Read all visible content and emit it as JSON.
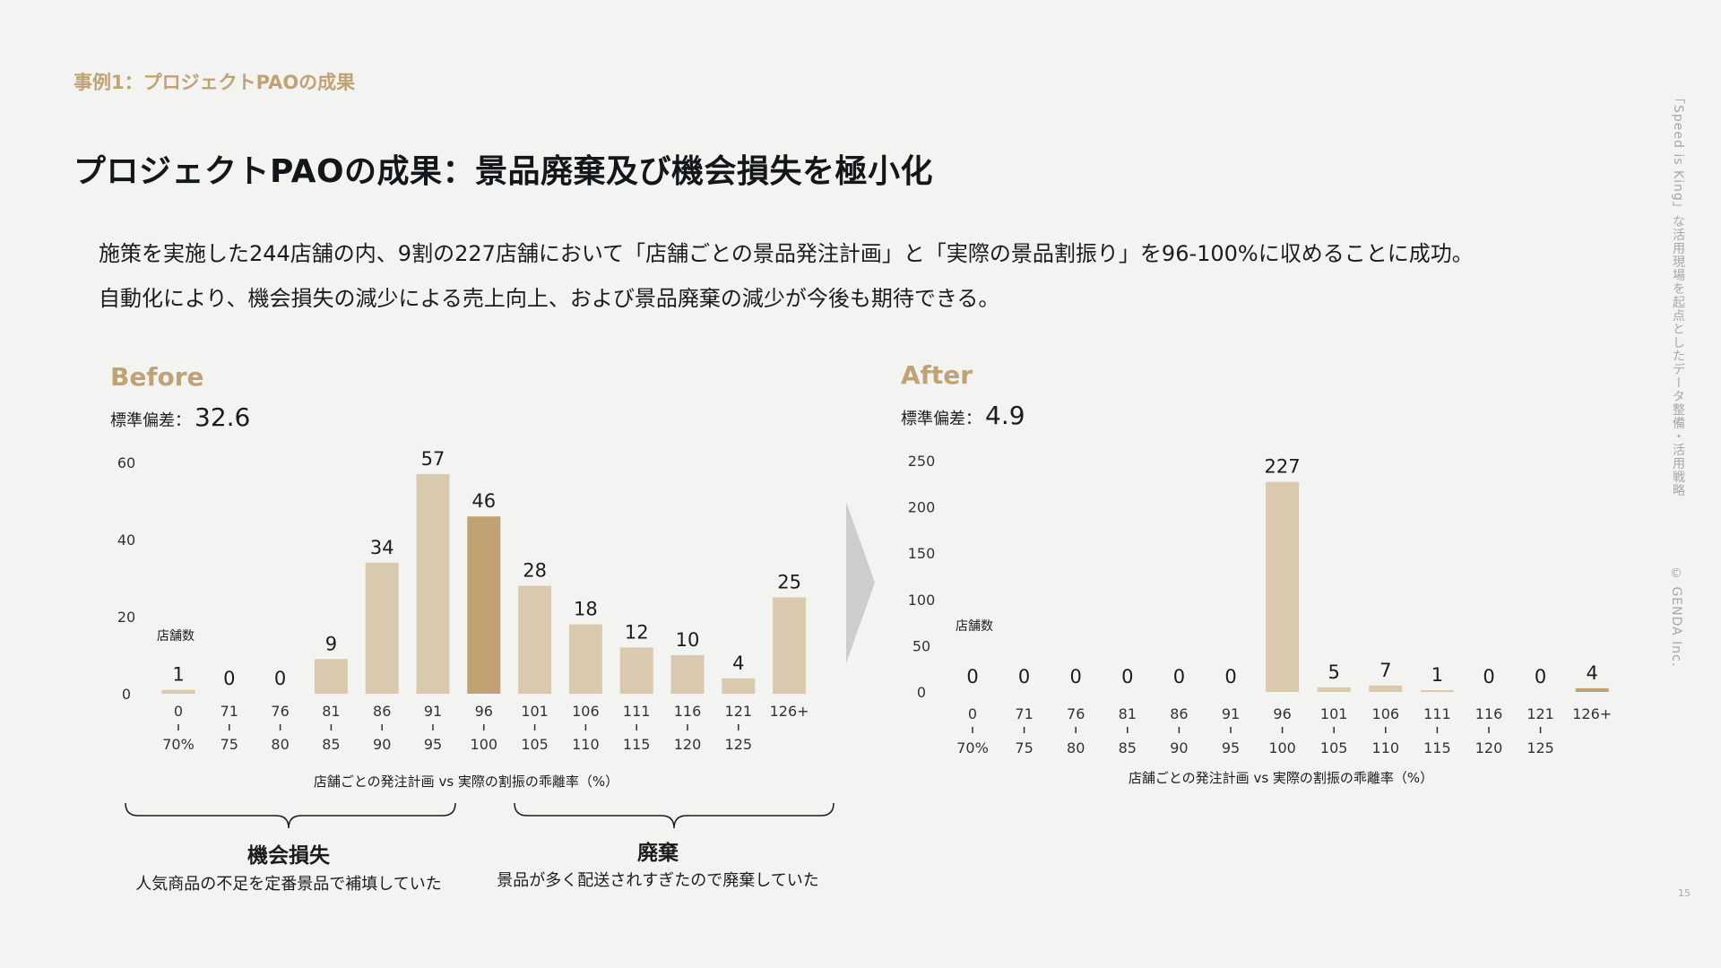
{
  "header": {
    "breadcrumb": "事例1：プロジェクトPAOの成果",
    "title": "プロジェクトPAOの成果：景品廃棄及び機会損失を極小化"
  },
  "description": {
    "line1": "施策を実施した244店舗の内、9割の227店舗において「店舗ごとの景品発注計画」と「実際の景品割振り」を96-100%に収めることに成功。",
    "line2": "自動化により、機会損失の減少による売上向上、および景品廃棄の減少が今後も期待できる。"
  },
  "before": {
    "label": "Before",
    "stdev_label": "標準偏差：",
    "stdev_value": "32.6"
  },
  "after": {
    "label": "After",
    "stdev_label": "標準偏差：",
    "stdev_value": "4.9"
  },
  "annotations": {
    "loss_title": "機会損失",
    "loss_desc": "人気商品の不足を定番景品で補填していた",
    "waste_title": "廃棄",
    "waste_desc": "景品が多く配送されすぎたので廃棄していた"
  },
  "side": {
    "tagline": "「Speed is King」な活用現場を起点としたデータ整備・活用戦略",
    "copyright": "© GENDA Inc.",
    "page_number": "15"
  },
  "colors": {
    "bar": "#d9c9ae",
    "bar_highlight": "#c1a272",
    "accent": "#c0a274",
    "arrow": "#cdcdcb"
  },
  "chart_data": [
    {
      "type": "bar",
      "title": "",
      "xlabel": "店舗ごとの発注計画 vs 実際の割振の乖離率（%）",
      "ylabel": "店舗数",
      "categories": [
        [
          "0",
          "70%"
        ],
        [
          "71",
          "75"
        ],
        [
          "76",
          "80"
        ],
        [
          "81",
          "85"
        ],
        [
          "86",
          "90"
        ],
        [
          "91",
          "95"
        ],
        [
          "96",
          "100"
        ],
        [
          "101",
          "105"
        ],
        [
          "106",
          "110"
        ],
        [
          "111",
          "115"
        ],
        [
          "116",
          "120"
        ],
        [
          "121",
          "125"
        ],
        [
          "126+",
          ""
        ]
      ],
      "values": [
        1,
        0,
        0,
        9,
        34,
        57,
        46,
        28,
        18,
        12,
        10,
        4,
        25
      ],
      "highlight_index": 6,
      "yticks": [
        0,
        20,
        40,
        60
      ],
      "ylim": [
        0,
        60
      ],
      "grid": false
    },
    {
      "type": "bar",
      "title": "",
      "xlabel": "店舗ごとの発注計画 vs 実際の割振の乖離率（%）",
      "ylabel": "店舗数",
      "categories": [
        [
          "0",
          "70%"
        ],
        [
          "71",
          "75"
        ],
        [
          "76",
          "80"
        ],
        [
          "81",
          "85"
        ],
        [
          "86",
          "90"
        ],
        [
          "91",
          "95"
        ],
        [
          "96",
          "100"
        ],
        [
          "101",
          "105"
        ],
        [
          "106",
          "110"
        ],
        [
          "111",
          "115"
        ],
        [
          "116",
          "120"
        ],
        [
          "121",
          "125"
        ],
        [
          "126+",
          ""
        ]
      ],
      "values": [
        0,
        0,
        0,
        0,
        0,
        0,
        227,
        5,
        7,
        1,
        0,
        0,
        4
      ],
      "highlight_index": 12,
      "yticks": [
        0,
        50,
        100,
        150,
        200,
        250
      ],
      "ylim": [
        0,
        250
      ],
      "grid": false
    }
  ]
}
